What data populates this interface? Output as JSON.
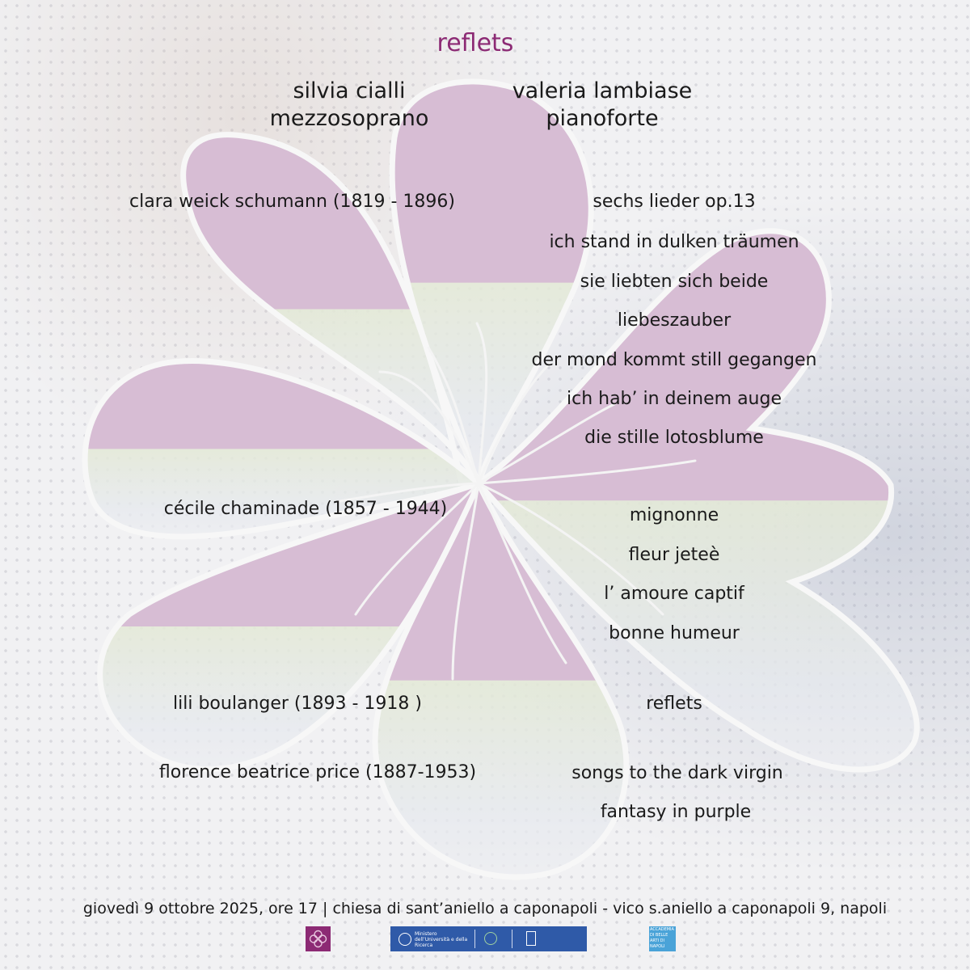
{
  "title": "reflets",
  "performers": [
    {
      "name": "silvia cialli",
      "role": "mezzosoprano"
    },
    {
      "name": "valeria lambiase",
      "role": "pianoforte"
    }
  ],
  "program": [
    {
      "composer": "clara weick schumann (1819 - 1896)",
      "works": [
        "sechs lieder op.13",
        "ich stand in dulken träumen",
        "sie liebten sich beide",
        "liebeszauber",
        "der mond kommt still gegangen",
        "ich hab’ in deinem auge",
        "die stille lotosblume"
      ]
    },
    {
      "composer": "cécile chaminade (1857 - 1944)",
      "works": [
        "mignonne",
        "fleur jeteè",
        "l’ amoure captif",
        "bonne humeur"
      ]
    },
    {
      "composer": "lili boulanger (1893 - 1918 )",
      "works": [
        "reflets"
      ]
    },
    {
      "composer": "florence beatrice price (1887-1953)",
      "works": [
        "songs to the dark virgin",
        "fantasy in purple"
      ]
    }
  ],
  "footer": "giovedì 9 ottobre 2025, ore 17  |  chiesa di sant’aniello a caponapoli - vico s.aniello a caponapoli 9, napoli",
  "logos": [
    {
      "icon": "flower-logo-icon"
    },
    {
      "icon": "ministry-logo-icon",
      "text": "Ministero dell’Università e della Ricerca"
    },
    {
      "icon": "accademia-logo-icon",
      "text": "ACCADEMIA DI BELLE ARTI DI NAPOLI"
    }
  ],
  "colors": {
    "title": "#8c2a74",
    "petal_top": "#d7bdd4",
    "petal_bottom": "#dde3cf",
    "outline": "#f7f7f7"
  }
}
